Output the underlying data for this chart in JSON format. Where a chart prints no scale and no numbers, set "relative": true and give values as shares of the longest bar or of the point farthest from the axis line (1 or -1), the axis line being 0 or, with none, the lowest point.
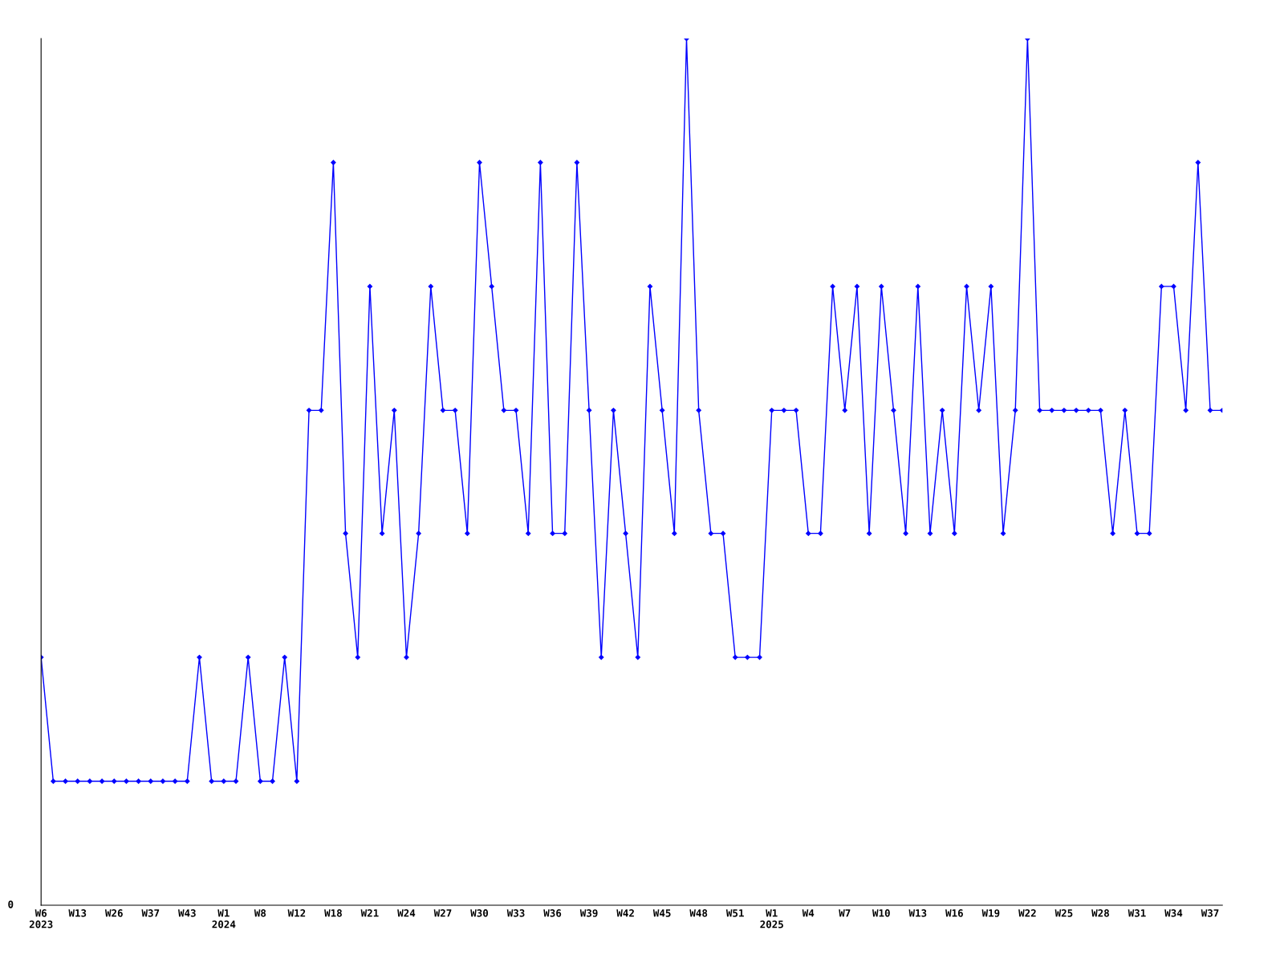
{
  "chart_data": {
    "type": "line",
    "relative": true,
    "annotations": [
      "0"
    ],
    "marker": "diamond",
    "line_style": "solid",
    "grid": false,
    "categories": [
      "W6\n2023",
      null,
      null,
      "W13",
      null,
      null,
      "W26",
      null,
      null,
      "W37",
      null,
      null,
      "W43",
      null,
      null,
      "W1\n2024",
      null,
      null,
      "W8",
      null,
      null,
      "W12",
      null,
      null,
      "W18",
      null,
      null,
      "W21",
      null,
      null,
      "W24",
      null,
      null,
      "W27",
      null,
      null,
      "W30",
      null,
      null,
      "W33",
      null,
      null,
      "W36",
      null,
      null,
      "W39",
      null,
      null,
      "W42",
      null,
      null,
      "W45",
      null,
      null,
      "W48",
      null,
      null,
      "W51",
      null,
      null,
      "W1\n2025",
      null,
      null,
      "W4",
      null,
      null,
      "W7",
      null,
      null,
      "W10",
      null,
      null,
      "W13",
      null,
      null,
      "W16",
      null,
      null,
      "W19",
      null,
      null,
      "W22",
      null,
      null,
      "W25",
      null,
      null,
      "W28",
      null,
      null,
      "W31",
      null,
      null,
      "W34",
      null,
      null,
      "W37",
      null
    ],
    "series": [
      {
        "color": "#0000ff",
        "values": [
          0.286,
          0.143,
          0.143,
          0.143,
          0.143,
          0.143,
          0.143,
          0.143,
          0.143,
          0.143,
          0.143,
          0.143,
          0.143,
          0.286,
          0.143,
          0.143,
          0.143,
          0.286,
          0.143,
          0.143,
          0.286,
          0.143,
          0.571,
          0.571,
          0.857,
          0.429,
          0.286,
          0.714,
          0.429,
          0.571,
          0.286,
          0.429,
          0.714,
          0.571,
          0.571,
          0.429,
          0.857,
          0.714,
          0.571,
          0.571,
          0.429,
          0.857,
          0.429,
          0.429,
          0.857,
          0.571,
          0.286,
          0.571,
          0.429,
          0.286,
          0.714,
          0.571,
          0.429,
          1,
          0.571,
          0.429,
          0.429,
          0.286,
          0.286,
          0.286,
          0.571,
          0.571,
          0.571,
          0.429,
          0.429,
          0.714,
          0.571,
          0.714,
          0.429,
          0.714,
          0.571,
          0.429,
          0.714,
          0.429,
          0.571,
          0.429,
          0.714,
          0.571,
          0.714,
          0.429,
          0.571,
          1,
          0.571,
          0.571,
          0.571,
          0.571,
          0.571,
          0.571,
          0.429,
          0.571,
          0.429,
          0.429,
          0.714,
          0.714,
          0.571,
          0.857,
          0.571,
          0.571
        ]
      }
    ]
  }
}
